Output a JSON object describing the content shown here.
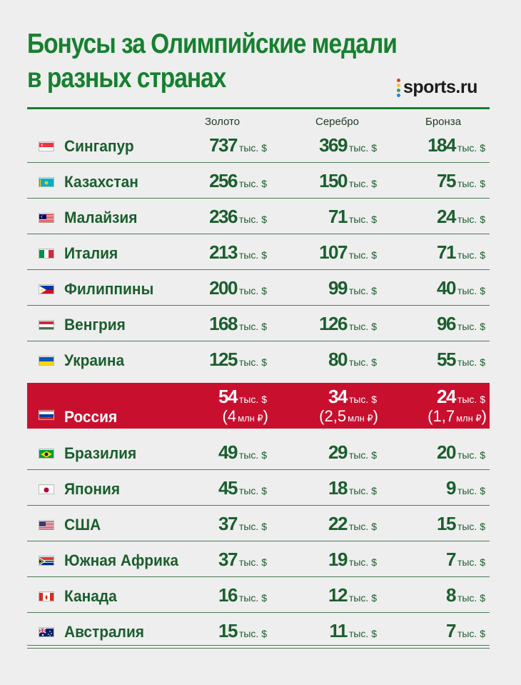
{
  "title_lines": [
    "Бонусы за Олимпийские медали",
    "в разных странах"
  ],
  "logo": "sports.ru",
  "colors": {
    "title": "#16802f",
    "text": "#1b5e2e",
    "highlight": "#c8102e",
    "background": "#eeeeee"
  },
  "chart_data": {
    "type": "table",
    "title": "Бонусы за Олимпийские медали в разных странах",
    "columns": [
      "Золото",
      "Серебро",
      "Бронза"
    ],
    "unit": "тыс. $",
    "rub_unit": "млн ₽",
    "rows": [
      {
        "country": "Сингапур",
        "flag": "singapore-flag",
        "gold": "737",
        "silver": "369",
        "bronze": "184"
      },
      {
        "country": "Казахстан",
        "flag": "kazakhstan-flag",
        "gold": "256",
        "silver": "150",
        "bronze": "75"
      },
      {
        "country": "Малайзия",
        "flag": "malaysia-flag",
        "gold": "236",
        "silver": "71",
        "bronze": "24"
      },
      {
        "country": "Италия",
        "flag": "italy-flag",
        "gold": "213",
        "silver": "107",
        "bronze": "71"
      },
      {
        "country": "Филиппины",
        "flag": "philippines-flag",
        "gold": "200",
        "silver": "99",
        "bronze": "40"
      },
      {
        "country": "Венгрия",
        "flag": "hungary-flag",
        "gold": "168",
        "silver": "126",
        "bronze": "96"
      },
      {
        "country": "Украина",
        "flag": "ukraine-flag",
        "gold": "125",
        "silver": "80",
        "bronze": "55"
      },
      {
        "country": "Россия",
        "flag": "russia-flag",
        "gold": "54",
        "silver": "34",
        "bronze": "24",
        "highlight": true,
        "gold_rub": "4",
        "silver_rub": "2,5",
        "bronze_rub": "1,7"
      },
      {
        "country": "Бразилия",
        "flag": "brazil-flag",
        "gold": "49",
        "silver": "29",
        "bronze": "20"
      },
      {
        "country": "Япония",
        "flag": "japan-flag",
        "gold": "45",
        "silver": "18",
        "bronze": "9"
      },
      {
        "country": "США",
        "flag": "usa-flag",
        "gold": "37",
        "silver": "22",
        "bronze": "15"
      },
      {
        "country": "Южная Африка",
        "flag": "south-africa-flag",
        "gold": "37",
        "silver": "19",
        "bronze": "7"
      },
      {
        "country": "Канада",
        "flag": "canada-flag",
        "gold": "16",
        "silver": "12",
        "bronze": "8"
      },
      {
        "country": "Австралия",
        "flag": "australia-flag",
        "gold": "15",
        "silver": "11",
        "bronze": "7"
      }
    ]
  }
}
